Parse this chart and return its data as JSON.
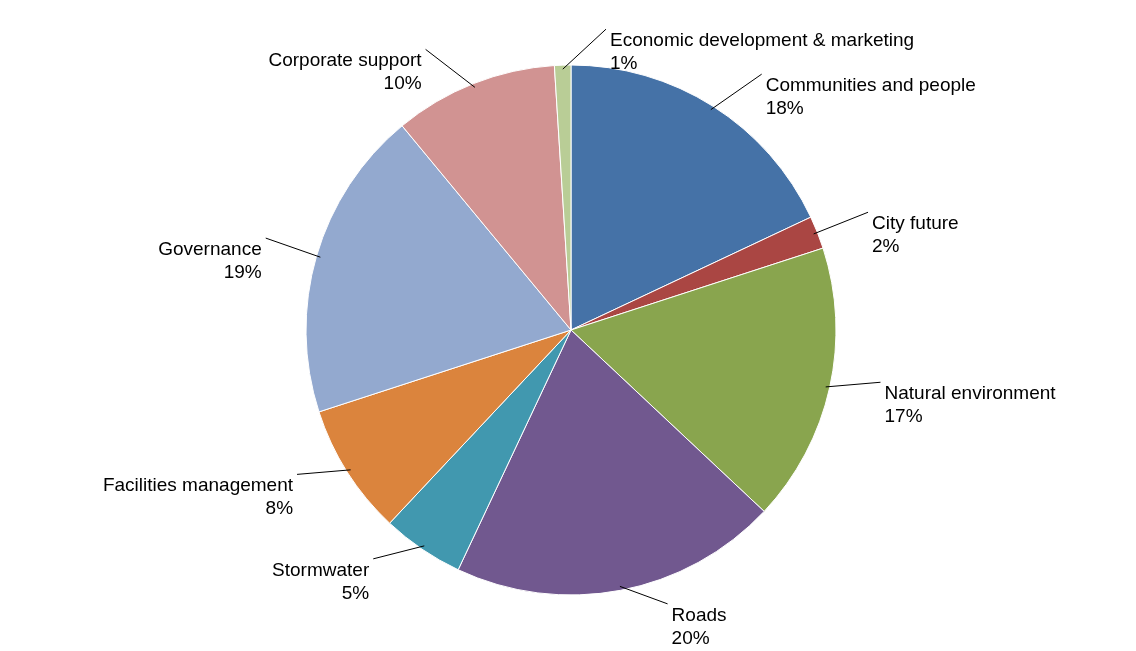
{
  "chart_data": {
    "type": "pie",
    "categories": [
      "Communities and people",
      "City future",
      "Natural environment",
      "Roads",
      "Stormwater",
      "Facilities management",
      "Governance",
      "Corporate support",
      "Economic development & marketing"
    ],
    "values": [
      18,
      2,
      17,
      20,
      5,
      8,
      19,
      10,
      1
    ],
    "value_labels": [
      "18%",
      "2%",
      "17%",
      "20%",
      "5%",
      "8%",
      "19%",
      "10%",
      "1%"
    ],
    "colors": [
      "#4572a7",
      "#aa4643",
      "#89a54e",
      "#71588f",
      "#4198af",
      "#db843d",
      "#93a9cf",
      "#d19392",
      "#b9cd96"
    ]
  }
}
